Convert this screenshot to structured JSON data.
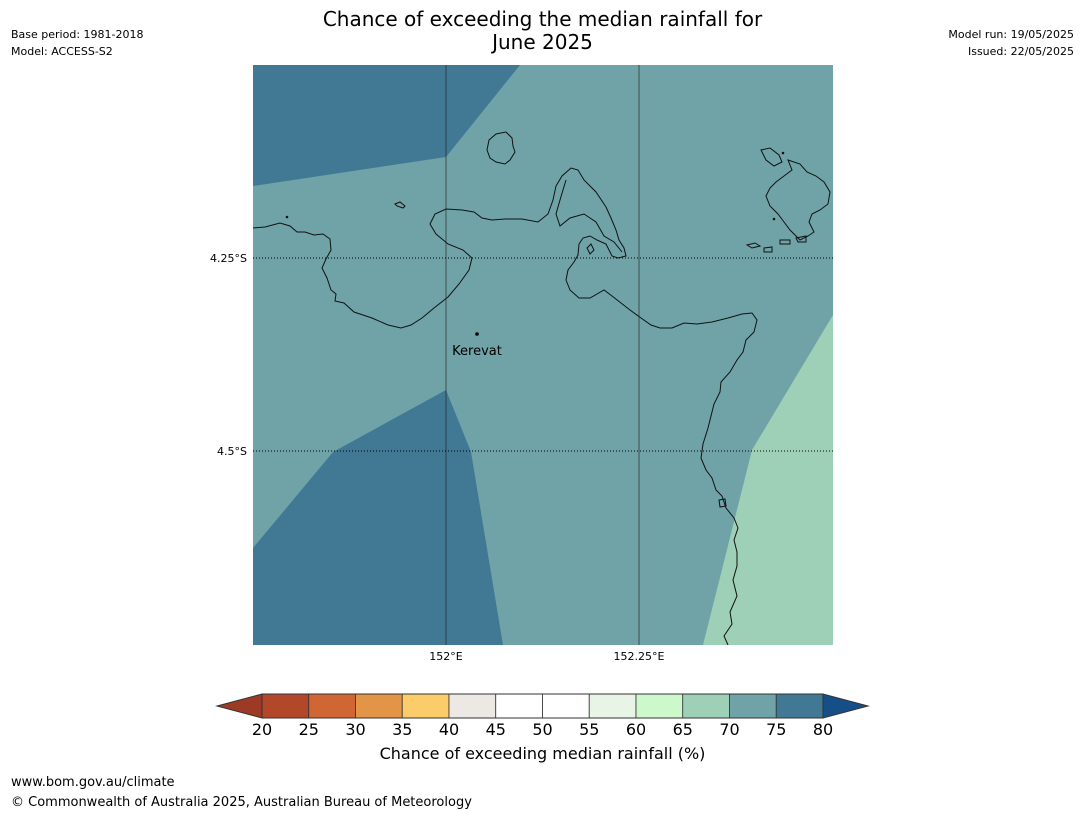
{
  "title_line1": "Chance of exceeding the median rainfall for",
  "title_line2": "June 2025",
  "meta_left": {
    "base_period": "Base period: 1981-2018",
    "model": "Model: ACCESS-S2"
  },
  "meta_right": {
    "model_run": "Model run: 19/05/2025",
    "issued": "Issued: 22/05/2025"
  },
  "map": {
    "lat_labels": [
      "4.25°S",
      "4.5°S"
    ],
    "lon_labels": [
      "152°E",
      "152.25°E"
    ],
    "place": "Kerevat"
  },
  "legend": {
    "label": "Chance of exceeding median rainfall (%)",
    "ticks": [
      "20",
      "25",
      "30",
      "35",
      "40",
      "45",
      "50",
      "55",
      "60",
      "65",
      "70",
      "75",
      "80"
    ],
    "colors": {
      "under": "#9c3a25",
      "bins": [
        "#b2472a",
        "#cf6633",
        "#e29447",
        "#fdcc6a",
        "#ece8e4",
        "#ffffff",
        "#ffffff",
        "#e8f5e6",
        "#ccf8cc",
        "#9ecfb7",
        "#6fa3a7",
        "#417995"
      ],
      "over": "#164f88"
    }
  },
  "colors": {
    "teal": "#6fa3a7",
    "blue": "#417995",
    "green": "#9ecfb7"
  },
  "footer": {
    "url": "www.bom.gov.au/climate",
    "copyright": "© Commonwealth of Australia 2025, Australian Bureau of Meteorology"
  }
}
